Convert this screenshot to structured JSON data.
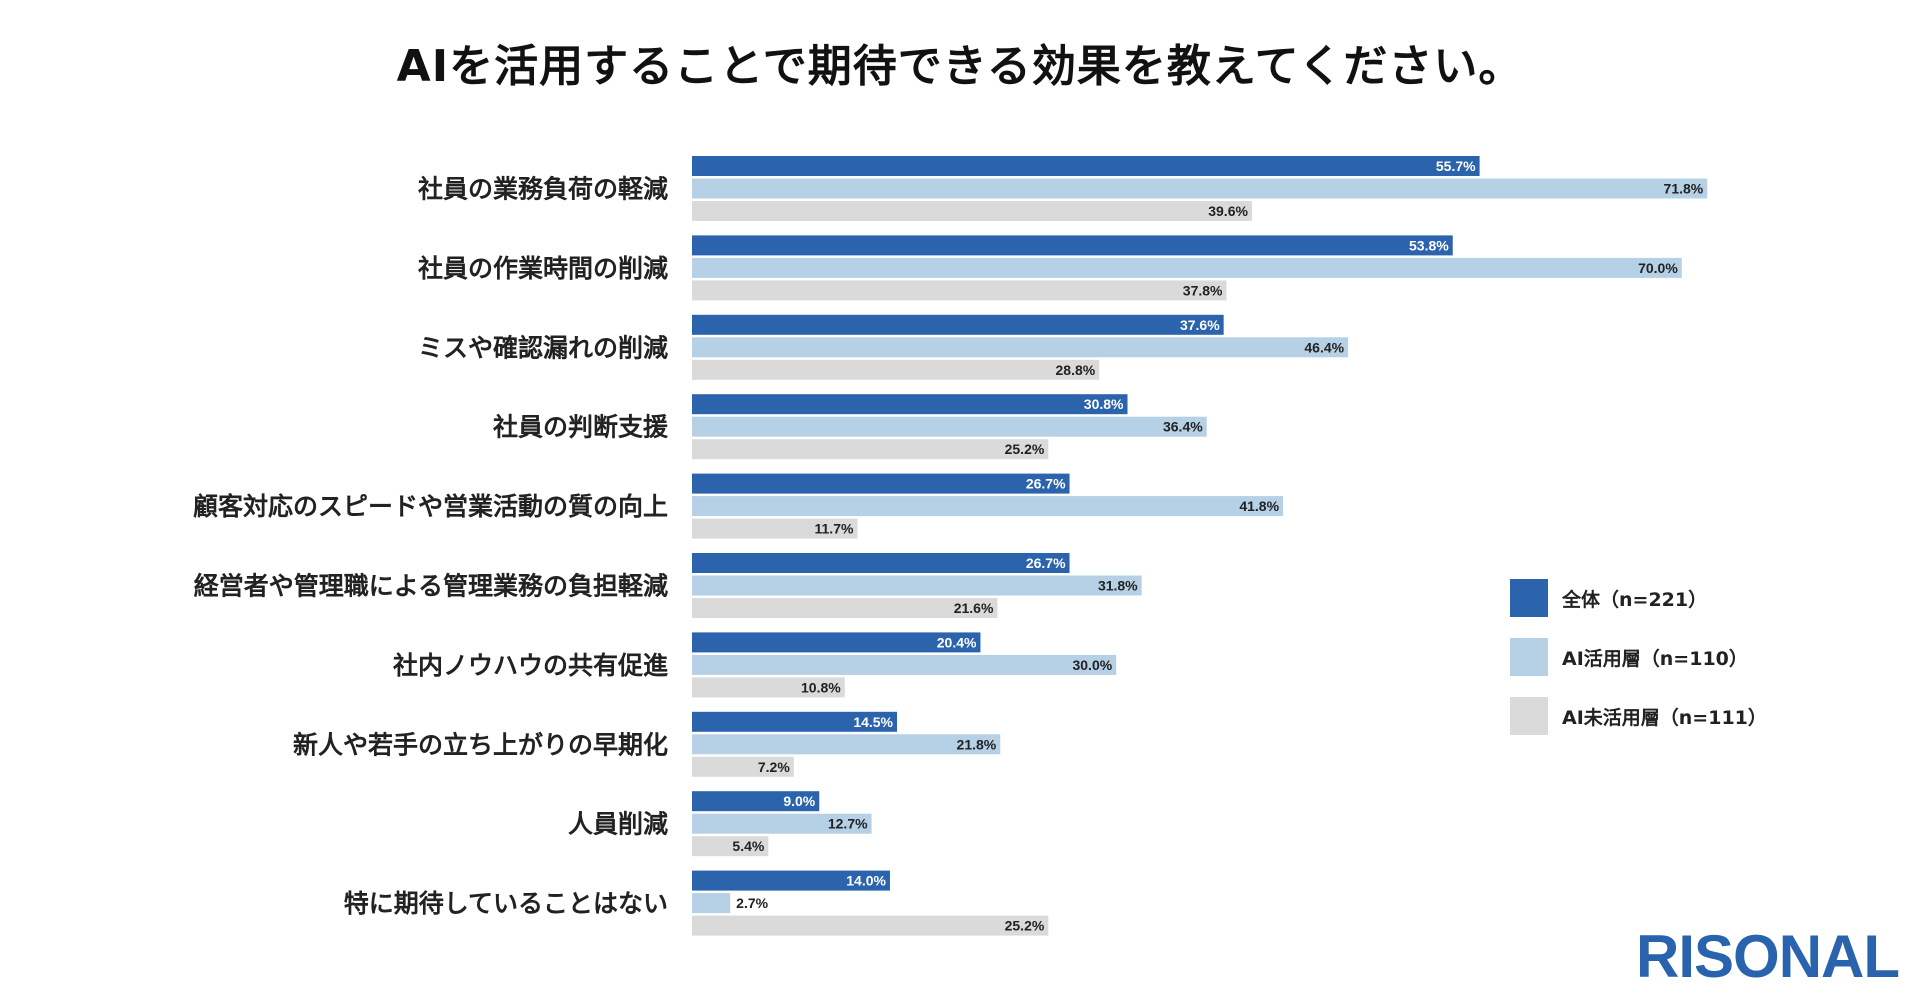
{
  "title": "AIを活用することで期待できる効果を教えてください。",
  "brand": "RISONAL",
  "colors": {
    "all": "#2b64ad",
    "ai_users": "#b6d0e6",
    "non_users": "#dadada"
  },
  "chart_data": {
    "type": "bar",
    "orientation": "horizontal",
    "title": "AIを活用することで期待できる効果を教えてください。",
    "unit": "%",
    "categories": [
      "社員の業務負荷の軽減",
      "社員の作業時間の削減",
      "ミスや確認漏れの削減",
      "社員の判断支援",
      "顧客対応のスピードや営業活動の質の向上",
      "経営者や管理職による管理業務の負担軽減",
      "社内ノウハウの共有促進",
      "新人や若手の立ち上がりの早期化",
      "人員削減",
      "特に期待していることはない"
    ],
    "series": [
      {
        "name": "全体（n=221）",
        "color": "#2b64ad",
        "values": [
          55.7,
          53.8,
          37.6,
          30.8,
          26.7,
          26.7,
          20.4,
          14.5,
          9.0,
          14.0
        ],
        "labels": [
          "55.7%",
          "53.8%",
          "37.6%",
          "30.8%",
          "26.7%",
          "26.7%",
          "20.4%",
          "14.5%",
          "9.0%",
          "14.0%"
        ]
      },
      {
        "name": "AI活用層（n=110）",
        "color": "#b6d0e6",
        "values": [
          71.8,
          70.0,
          46.4,
          36.4,
          41.8,
          31.8,
          30.0,
          21.8,
          12.7,
          2.7
        ],
        "labels": [
          "71.8%",
          "70.0%",
          "46.4%",
          "36.4%",
          "41.8%",
          "31.8%",
          "30.0%",
          "21.8%",
          "12.7%",
          "2.7%"
        ]
      },
      {
        "name": "AI未活用層（n=111）",
        "color": "#dadada",
        "values": [
          39.6,
          37.8,
          28.8,
          25.2,
          11.7,
          21.6,
          10.8,
          7.2,
          5.4,
          25.2
        ],
        "labels": [
          "39.6%",
          "37.8%",
          "28.8%",
          "25.2%",
          "11.7%",
          "21.6%",
          "10.8%",
          "7.2%",
          "5.4%",
          "25.2%"
        ]
      }
    ],
    "xlim": [
      0,
      80
    ],
    "grid": false,
    "legend_position": "right"
  }
}
